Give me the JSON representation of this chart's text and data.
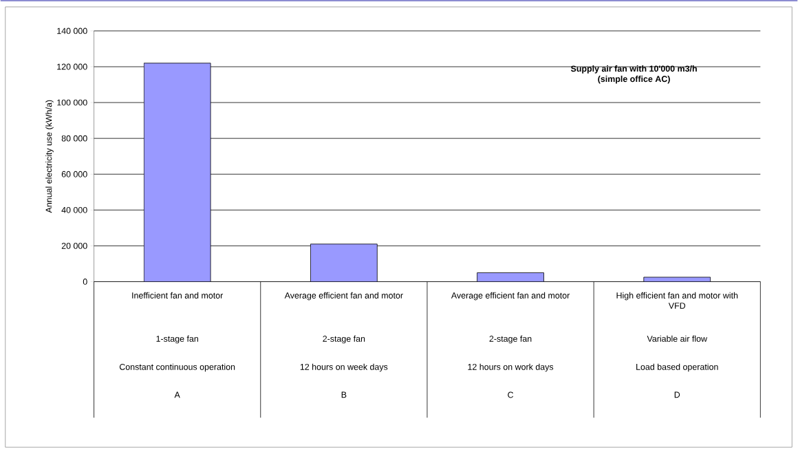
{
  "chart_data": {
    "type": "bar",
    "title": "Supply air fan with 10'000 m3/h\n(simple office AC)",
    "ylabel": "Annual electricity use (kWh/a)",
    "categories": [
      "Inefficient fan and motor",
      "Average efficient fan and motor",
      "Average efficient fan and motor",
      "High efficient fan and motor with VFD"
    ],
    "values": [
      122000,
      21000,
      5000,
      2500
    ],
    "color": "#9999ff",
    "ylim": [
      0,
      140000
    ],
    "yticks": [
      {
        "value": 0,
        "label": "0"
      },
      {
        "value": 20000,
        "label": "20 000"
      },
      {
        "value": 40000,
        "label": "40 000"
      },
      {
        "value": 60000,
        "label": "60 000"
      },
      {
        "value": 80000,
        "label": "80 000"
      },
      {
        "value": 100000,
        "label": "100 000"
      },
      {
        "value": 120000,
        "label": "120 000"
      },
      {
        "value": 140000,
        "label": "140 000"
      }
    ],
    "grid": "y",
    "annotations": [
      "1-stage fan",
      "2-stage fan",
      "2-stage fan",
      "Variable air flow",
      "Constant continuous operation",
      "12 hours on week days",
      "12 hours on work days",
      "Load based operation",
      "A",
      "B",
      "C",
      "D"
    ]
  }
}
